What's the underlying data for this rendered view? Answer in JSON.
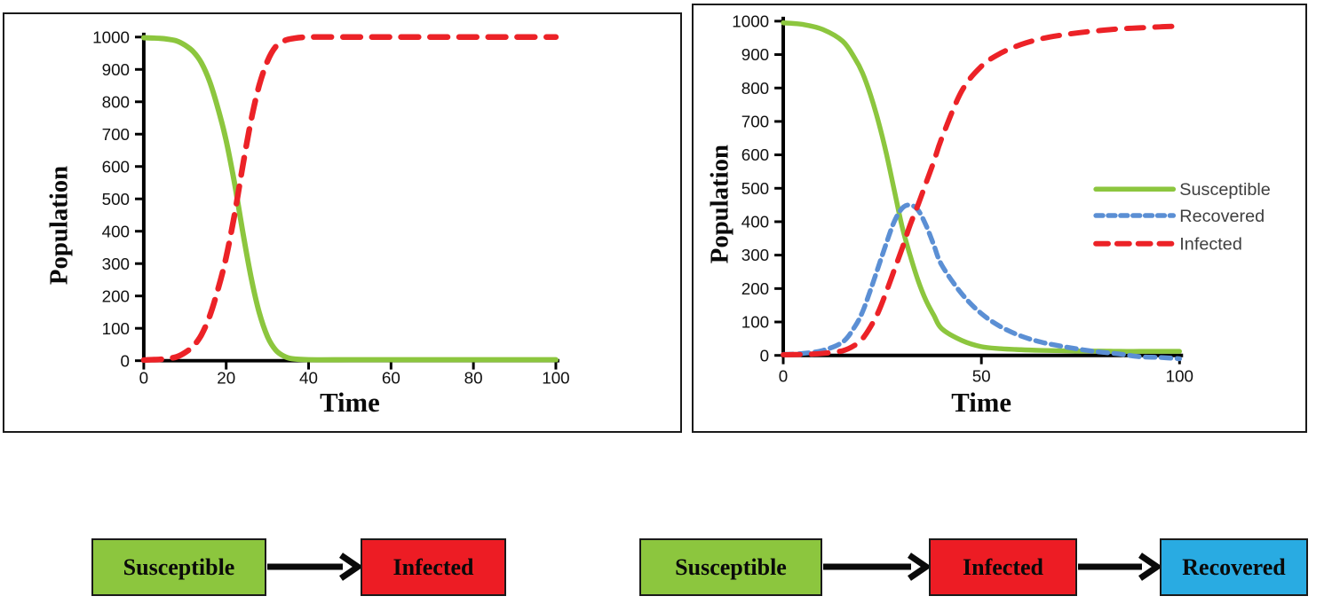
{
  "chart_data": [
    {
      "id": "si",
      "type": "line",
      "title": "",
      "xlabel": "Time",
      "ylabel": "Population",
      "xlim": [
        0,
        100
      ],
      "ylim": [
        0,
        1000
      ],
      "xticks": [
        0,
        20,
        40,
        60,
        80,
        100
      ],
      "yticks": [
        0,
        100,
        200,
        300,
        400,
        500,
        600,
        700,
        800,
        900,
        1000
      ],
      "grid": false,
      "legend": null,
      "x": [
        0,
        2,
        4,
        6,
        8,
        10,
        12,
        14,
        16,
        18,
        20,
        22,
        24,
        26,
        28,
        30,
        32,
        34,
        36,
        40,
        50,
        60,
        70,
        80,
        90,
        100
      ],
      "series": [
        {
          "name": "Susceptible",
          "color": "#8CC63E",
          "width": 6,
          "dash": null,
          "values": [
            998,
            997,
            996,
            993,
            988,
            975,
            955,
            920,
            862,
            780,
            680,
            550,
            400,
            260,
            150,
            75,
            33,
            14,
            6,
            3,
            3,
            3,
            3,
            3,
            3,
            3
          ]
        },
        {
          "name": "Infected",
          "color": "#EC2227",
          "width": 6.5,
          "dash": [
            20,
            13
          ],
          "values": [
            2,
            3,
            4,
            7,
            12,
            25,
            45,
            80,
            138,
            220,
            320,
            450,
            600,
            740,
            850,
            925,
            970,
            988,
            995,
            1000,
            1000,
            1000,
            1000,
            1000,
            1000,
            1000
          ]
        }
      ]
    },
    {
      "id": "sir",
      "type": "line",
      "title": "",
      "xlabel": "Time",
      "ylabel": "Population",
      "xlim": [
        0,
        100
      ],
      "ylim": [
        0,
        1000
      ],
      "xticks": [
        0,
        50,
        100
      ],
      "yticks": [
        0,
        100,
        200,
        300,
        400,
        500,
        600,
        700,
        800,
        900,
        1000
      ],
      "grid": false,
      "legend": {
        "position": "right"
      },
      "x": [
        0,
        5,
        10,
        15,
        18,
        20,
        22,
        24,
        26,
        28,
        30,
        32,
        34,
        36,
        38,
        40,
        45,
        50,
        55,
        60,
        65,
        70,
        75,
        80,
        85,
        90,
        95,
        100
      ],
      "series": [
        {
          "name": "Susceptible",
          "color": "#8CC63E",
          "width": 5.5,
          "dash": null,
          "values": [
            995,
            990,
            975,
            940,
            890,
            845,
            780,
            700,
            605,
            495,
            385,
            300,
            225,
            165,
            120,
            80,
            45,
            26,
            20,
            17,
            15,
            14,
            13,
            13,
            12,
            12,
            12,
            12
          ]
        },
        {
          "name": "Recovered",
          "color": "#5B8FD4",
          "width": 5.5,
          "dash": [
            11,
            7
          ],
          "values": [
            3,
            6,
            15,
            40,
            85,
            130,
            195,
            265,
            335,
            400,
            440,
            450,
            435,
            390,
            330,
            270,
            185,
            125,
            85,
            58,
            40,
            28,
            18,
            10,
            4,
            -4,
            -6,
            -10
          ]
        },
        {
          "name": "Infected",
          "color": "#EC2227",
          "width": 6,
          "dash": [
            19,
            13
          ],
          "values": [
            2,
            3,
            6,
            14,
            30,
            50,
            85,
            130,
            190,
            255,
            320,
            390,
            450,
            515,
            580,
            650,
            790,
            865,
            905,
            930,
            947,
            958,
            966,
            972,
            977,
            980,
            983,
            985
          ]
        }
      ]
    }
  ],
  "flow_diagrams": [
    {
      "id": "si-flow",
      "boxes": [
        {
          "label": "Susceptible",
          "color": "#8CC63E"
        },
        {
          "label": "Infected",
          "color": "#ED1C24"
        }
      ]
    },
    {
      "id": "sir-flow",
      "boxes": [
        {
          "label": "Susceptible",
          "color": "#8CC63E"
        },
        {
          "label": "Infected",
          "color": "#ED1C24"
        },
        {
          "label": "Recovered",
          "color": "#29ABE2"
        }
      ]
    }
  ],
  "colors": {
    "susceptible_green": "#8CC63E",
    "infected_red": "#EC2227",
    "recovered_blue": "#5B8FD4",
    "recovered_box_blue": "#29ABE2",
    "axis_black": "#000000",
    "legend_text": "#3f3f3f"
  }
}
